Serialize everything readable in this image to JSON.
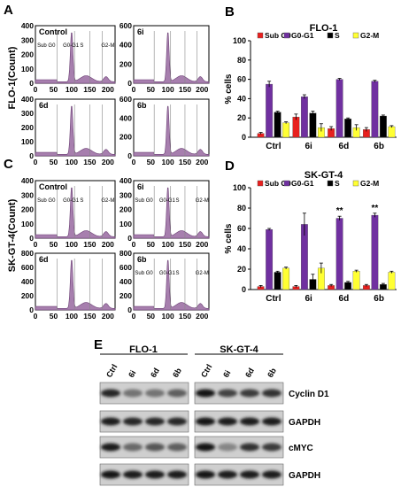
{
  "panel_letters": [
    "A",
    "B",
    "C",
    "D",
    "E"
  ],
  "histogram_groups": [
    {
      "ylabel": "FLO-1(Count)",
      "plots": [
        {
          "label": "Control",
          "ymax": "400",
          "yticks": [
            "400",
            "300",
            "200",
            "100",
            "0"
          ],
          "xticks": [
            "0",
            "50",
            "100",
            "150",
            "200"
          ],
          "gates": [
            "Sub G0",
            "G0-G1",
            "S",
            "G2-M"
          ]
        },
        {
          "label": "6i",
          "ymax": "600",
          "yticks": [
            "600",
            "400",
            "200",
            "0"
          ],
          "xticks": [
            "0",
            "50",
            "100",
            "150",
            "200"
          ]
        },
        {
          "label": "6d",
          "ymax": "400",
          "yticks": [
            "400",
            "300",
            "200",
            "100",
            "0"
          ],
          "xticks": [
            "0",
            "50",
            "100",
            "150",
            "200"
          ]
        },
        {
          "label": "6b",
          "ymax": "600",
          "yticks": [
            "600",
            "400",
            "200",
            "0"
          ],
          "xticks": [
            "0",
            "50",
            "100",
            "150",
            "200"
          ]
        }
      ]
    },
    {
      "ylabel": "SK-GT-4(Count)",
      "plots": [
        {
          "label": "Control",
          "ymax": "400",
          "yticks": [
            "400",
            "300",
            "200",
            "100",
            "0"
          ],
          "xticks": [
            "0",
            "50",
            "100",
            "150",
            "200"
          ],
          "gates": [
            "Sub G0",
            "G0-G1",
            "S",
            "G2-M"
          ]
        },
        {
          "label": "6i",
          "ymax": "400",
          "yticks": [
            "400",
            "300",
            "200",
            "100",
            "0"
          ],
          "xticks": [
            "0",
            "50",
            "100",
            "150",
            "200"
          ],
          "gates": [
            "Sub G0",
            "G0-G1",
            "S",
            "G2-M"
          ]
        },
        {
          "label": "6d",
          "ymax": "800",
          "yticks": [
            "800",
            "600",
            "400",
            "200",
            "0"
          ],
          "xticks": [
            "0",
            "50",
            "100",
            "150",
            "200"
          ]
        },
        {
          "label": "6b",
          "ymax": "800",
          "yticks": [
            "800",
            "600",
            "400",
            "200",
            "0"
          ],
          "xticks": [
            "0",
            "50",
            "100",
            "150",
            "200"
          ],
          "gates": [
            "Sub G0",
            "G0-G1",
            "S",
            "G2-M"
          ]
        }
      ]
    }
  ],
  "chart_data": [
    {
      "type": "bar",
      "title": "FLO-1",
      "ylabel": "% cells",
      "ylim": [
        0,
        100
      ],
      "yticks": [
        "0",
        "20",
        "40",
        "60",
        "80",
        "100"
      ],
      "categories": [
        "Ctrl",
        "6i",
        "6d",
        "6b"
      ],
      "legend_placement": "top",
      "series": [
        {
          "name": "Sub G0",
          "color": "#e8201e",
          "values": [
            4,
            21,
            9,
            8
          ],
          "errors": [
            1,
            3,
            2,
            2
          ]
        },
        {
          "name": "G0-G1",
          "color": "#7030a0",
          "values": [
            55,
            42,
            60,
            58
          ],
          "errors": [
            3,
            2,
            1,
            1
          ]
        },
        {
          "name": "S",
          "color": "#000000",
          "values": [
            26,
            25,
            19,
            22
          ],
          "errors": [
            1,
            2,
            1,
            1
          ]
        },
        {
          "name": "G2-M",
          "color": "#ffff33",
          "values": [
            15,
            10,
            10,
            11
          ],
          "errors": [
            1,
            4,
            3,
            1
          ]
        }
      ],
      "annotations": []
    },
    {
      "type": "bar",
      "title": "SK-GT-4",
      "ylabel": "% cells",
      "ylim": [
        0,
        100
      ],
      "yticks": [
        "0",
        "20",
        "40",
        "60",
        "80",
        "100"
      ],
      "categories": [
        "Ctrl",
        "6i",
        "6d",
        "6b"
      ],
      "legend_placement": "top",
      "series": [
        {
          "name": "Sub G0",
          "color": "#e8201e",
          "values": [
            3,
            3,
            4,
            4
          ],
          "errors": [
            1,
            1,
            1,
            1
          ]
        },
        {
          "name": "G0-G1",
          "color": "#7030a0",
          "values": [
            59,
            64,
            70,
            73
          ],
          "errors": [
            1,
            11,
            2,
            2
          ]
        },
        {
          "name": "S",
          "color": "#000000",
          "values": [
            17,
            10,
            7,
            5
          ],
          "errors": [
            1,
            5,
            1,
            1
          ]
        },
        {
          "name": "G2-M",
          "color": "#ffff33",
          "values": [
            21,
            21,
            18,
            17
          ],
          "errors": [
            1,
            5,
            1,
            1
          ]
        }
      ],
      "annotations": [
        {
          "category": "6d",
          "series": "G0-G1",
          "text": "**"
        },
        {
          "category": "6b",
          "series": "G0-G1",
          "text": "**"
        }
      ]
    }
  ],
  "blot": {
    "groups": [
      "FLO-1",
      "SK-GT-4"
    ],
    "lanes": [
      "Ctrl",
      "6i",
      "6d",
      "6b"
    ],
    "rows": [
      "Cyclin D1",
      "GAPDH",
      "cMYC",
      "GAPDH"
    ]
  }
}
